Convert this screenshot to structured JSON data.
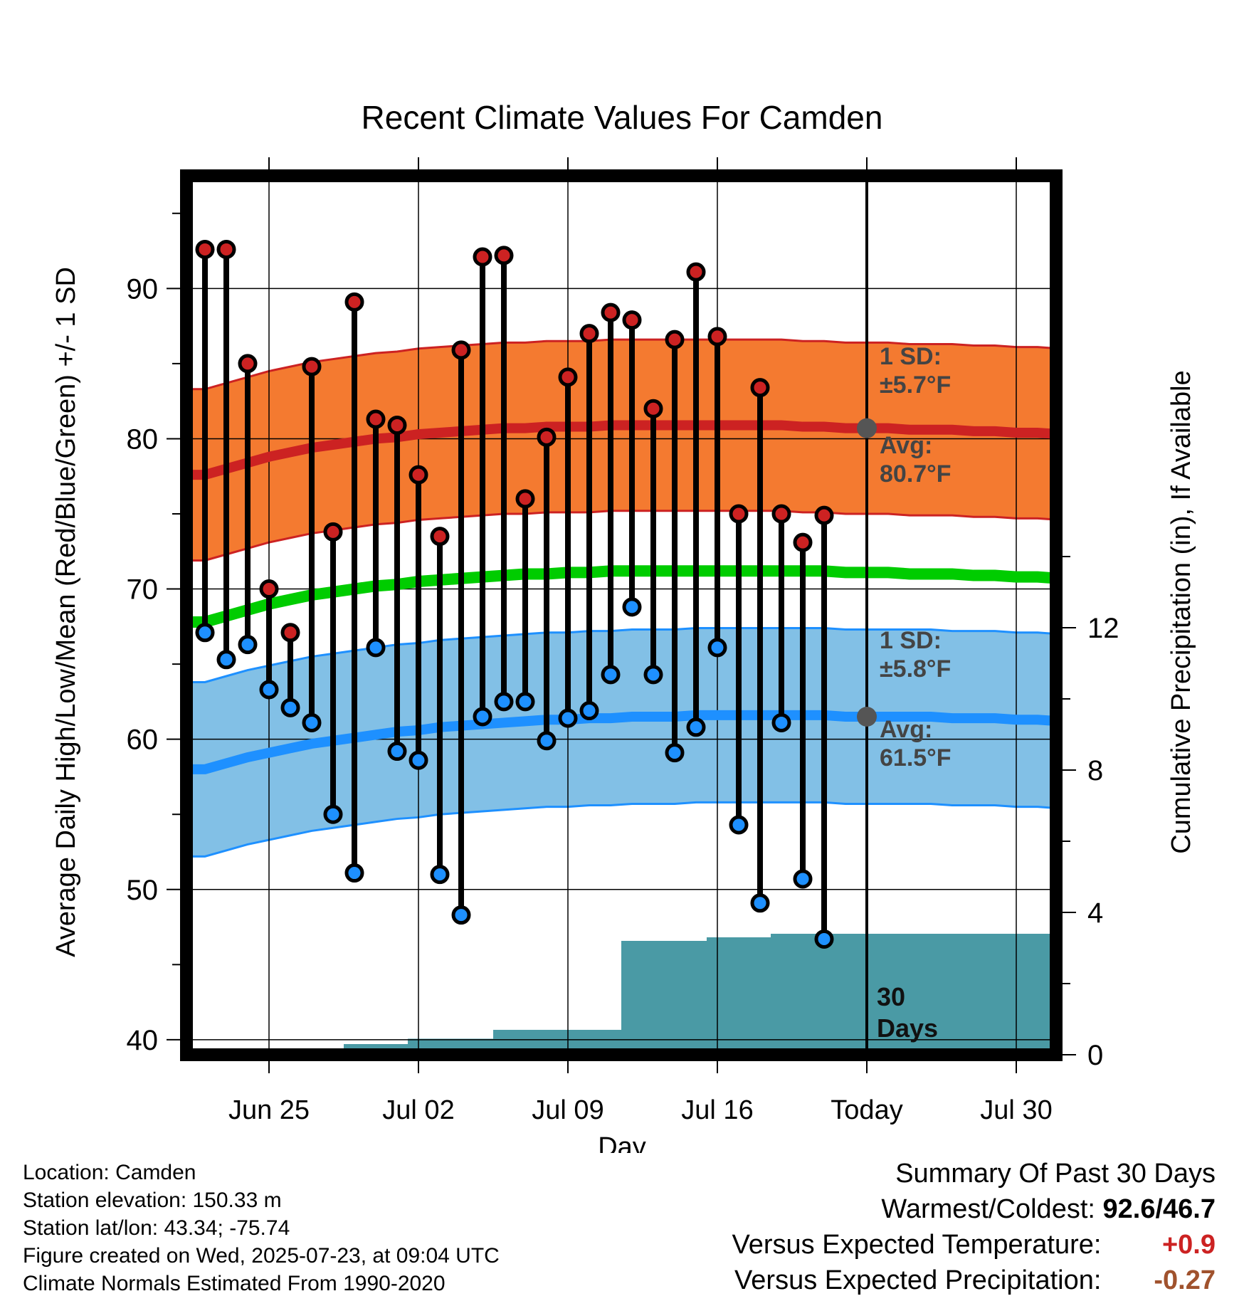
{
  "chart_data": {
    "type": "line",
    "title": "Recent Climate Values For Camden",
    "xlabel": "Day",
    "ylabel_left": "Average Daily High/Low/Mean (Red/Blue/Green) +/- 1 SD",
    "ylabel_right": "Cumulative Precipitation (in), If Available",
    "ylim_left": [
      39,
      97.5
    ],
    "ylim_right": [
      0,
      24.7
    ],
    "x_tick_labels": [
      "Jun 25",
      "Jul 02",
      "Jul 09",
      "Jul 16",
      "Today",
      "Jul 30"
    ],
    "y_left_ticks": [
      40,
      50,
      60,
      70,
      80,
      90
    ],
    "y_right_ticks": [
      0,
      4,
      8,
      12
    ],
    "grid": true,
    "today_marker_label": "30\nDays",
    "days": [
      "Jun 22",
      "Jun 23",
      "Jun 24",
      "Jun 25",
      "Jun 26",
      "Jun 27",
      "Jun 28",
      "Jun 29",
      "Jun 30",
      "Jul 01",
      "Jul 02",
      "Jul 03",
      "Jul 04",
      "Jul 05",
      "Jul 06",
      "Jul 07",
      "Jul 08",
      "Jul 09",
      "Jul 10",
      "Jul 11",
      "Jul 12",
      "Jul 13",
      "Jul 14",
      "Jul 15",
      "Jul 16",
      "Jul 17",
      "Jul 18",
      "Jul 19",
      "Jul 20",
      "Jul 21",
      "Jul 22",
      "Jul 23",
      "Jul 24",
      "Jul 25",
      "Jul 26",
      "Jul 27",
      "Jul 28",
      "Jul 29",
      "Jul 30",
      "Jul 31",
      "Aug 01",
      "Aug 02"
    ],
    "series": [
      {
        "name": "High",
        "color": "#cc2222",
        "x": [
          "Jun 22",
          "Jun 23",
          "Jun 24",
          "Jun 25",
          "Jun 26",
          "Jun 27",
          "Jun 28",
          "Jun 29",
          "Jun 30",
          "Jul 01",
          "Jul 02",
          "Jul 03",
          "Jul 04",
          "Jul 05",
          "Jul 06",
          "Jul 07",
          "Jul 08",
          "Jul 09",
          "Jul 10",
          "Jul 11",
          "Jul 12",
          "Jul 13",
          "Jul 14",
          "Jul 15",
          "Jul 16",
          "Jul 17",
          "Jul 18",
          "Jul 19",
          "Jul 20",
          "Jul 21",
          "Jul 22"
        ],
        "values": [
          92.6,
          92.6,
          85.0,
          70.0,
          67.1,
          84.8,
          73.8,
          89.1,
          81.3,
          80.9,
          77.6,
          73.5,
          85.9,
          92.1,
          92.2,
          76.0,
          80.1,
          84.1,
          87.0,
          88.4,
          87.9,
          82.0,
          86.6,
          91.1,
          86.8,
          75.0,
          83.4,
          75.0,
          73.1,
          74.9,
          null
        ]
      },
      {
        "name": "Low",
        "color": "#1e90ff",
        "x": [
          "Jun 22",
          "Jun 23",
          "Jun 24",
          "Jun 25",
          "Jun 26",
          "Jun 27",
          "Jun 28",
          "Jun 29",
          "Jun 30",
          "Jul 01",
          "Jul 02",
          "Jul 03",
          "Jul 04",
          "Jul 05",
          "Jul 06",
          "Jul 07",
          "Jul 08",
          "Jul 09",
          "Jul 10",
          "Jul 11",
          "Jul 12",
          "Jul 13",
          "Jul 14",
          "Jul 15",
          "Jul 16",
          "Jul 17",
          "Jul 18",
          "Jul 19",
          "Jul 20",
          "Jul 21",
          "Jul 22"
        ],
        "values": [
          67.1,
          65.3,
          66.3,
          63.3,
          62.1,
          61.1,
          55.0,
          51.1,
          66.1,
          59.2,
          58.6,
          51.0,
          48.3,
          61.5,
          62.5,
          62.5,
          59.9,
          61.4,
          61.9,
          64.3,
          68.8,
          64.3,
          59.1,
          60.8,
          66.1,
          54.3,
          49.1,
          61.1,
          50.7,
          46.7,
          null
        ]
      },
      {
        "name": "Normal High",
        "color": "#cc2222",
        "x_start": "Jun 22",
        "x_end": "Aug 02",
        "values": [
          77.6,
          78.0,
          78.4,
          78.8,
          79.1,
          79.4,
          79.6,
          79.8,
          80.0,
          80.1,
          80.3,
          80.4,
          80.5,
          80.6,
          80.7,
          80.7,
          80.8,
          80.8,
          80.8,
          80.9,
          80.9,
          80.9,
          80.9,
          80.9,
          80.9,
          80.9,
          80.9,
          80.9,
          80.8,
          80.8,
          80.7,
          80.7,
          80.7,
          80.6,
          80.6,
          80.6,
          80.5,
          80.5,
          80.4,
          80.4,
          80.3,
          80.3
        ],
        "sd": 5.7
      },
      {
        "name": "Normal Low",
        "color": "#1e90ff",
        "x_start": "Jun 22",
        "x_end": "Aug 02",
        "values": [
          58.0,
          58.4,
          58.8,
          59.1,
          59.4,
          59.7,
          59.9,
          60.1,
          60.3,
          60.5,
          60.6,
          60.8,
          60.9,
          61.0,
          61.1,
          61.2,
          61.3,
          61.3,
          61.4,
          61.4,
          61.5,
          61.5,
          61.5,
          61.6,
          61.6,
          61.6,
          61.6,
          61.6,
          61.6,
          61.6,
          61.5,
          61.5,
          61.5,
          61.5,
          61.5,
          61.4,
          61.4,
          61.4,
          61.3,
          61.3,
          61.2,
          61.2
        ],
        "sd": 5.8
      },
      {
        "name": "Normal Mean",
        "color": "#00cc00",
        "x_start": "Jun 22",
        "x_end": "Aug 02",
        "values": [
          67.8,
          68.2,
          68.6,
          69.0,
          69.3,
          69.6,
          69.8,
          70.0,
          70.2,
          70.3,
          70.5,
          70.6,
          70.7,
          70.8,
          70.9,
          71.0,
          71.0,
          71.1,
          71.1,
          71.2,
          71.2,
          71.2,
          71.2,
          71.2,
          71.2,
          71.2,
          71.2,
          71.2,
          71.2,
          71.2,
          71.1,
          71.1,
          71.1,
          71.0,
          71.0,
          71.0,
          70.9,
          70.9,
          70.8,
          70.8,
          70.7,
          70.7
        ]
      },
      {
        "name": "Cumulative Precipitation",
        "color": "#4a9aa5",
        "axis": "right",
        "steps": [
          {
            "from": "Jun 22",
            "to": "Jun 28",
            "value": 0.0
          },
          {
            "from": "Jun 29",
            "to": "Jul 01",
            "value": 0.3
          },
          {
            "from": "Jul 02",
            "to": "Jul 05",
            "value": 0.45
          },
          {
            "from": "Jul 06",
            "to": "Jul 11",
            "value": 0.7
          },
          {
            "from": "Jul 12",
            "to": "Jul 15",
            "value": 3.2
          },
          {
            "from": "Jul 16",
            "to": "Jul 18",
            "value": 3.3
          },
          {
            "from": "Jul 19",
            "to": "Aug 02",
            "value": 3.4
          }
        ]
      }
    ],
    "annotations": {
      "high_sd": "1 SD:\n±5.7°F",
      "high_avg": "Avg:\n80.7°F",
      "low_sd": "1 SD:\n±5.8°F",
      "low_avg": "Avg:\n61.5°F",
      "high_avg_value": 80.7,
      "low_avg_value": 61.5
    }
  },
  "info": {
    "location": "Location: Camden",
    "elevation": "Station elevation: 150.33 m",
    "latlon": "Station lat/lon: 43.34; -75.74",
    "created": "Figure created on Wed, 2025-07-23, at 09:04 UTC",
    "normals": "Climate Normals Estimated From 1990-2020"
  },
  "summary": {
    "title": "Summary Of Past 30 Days",
    "warm_cold_label": "Warmest/Coldest:",
    "warm_cold_value": "92.6/46.7",
    "temp_label": "Versus Expected Temperature:",
    "temp_value": "+0.9",
    "precip_label": "Versus Expected Precipitation:",
    "precip_value": "-0.27"
  },
  "colors": {
    "high_band": "#f47a30",
    "low_band": "#82c0e6",
    "precip_fill": "#4a9aa5",
    "avg_dot": "#555555"
  }
}
